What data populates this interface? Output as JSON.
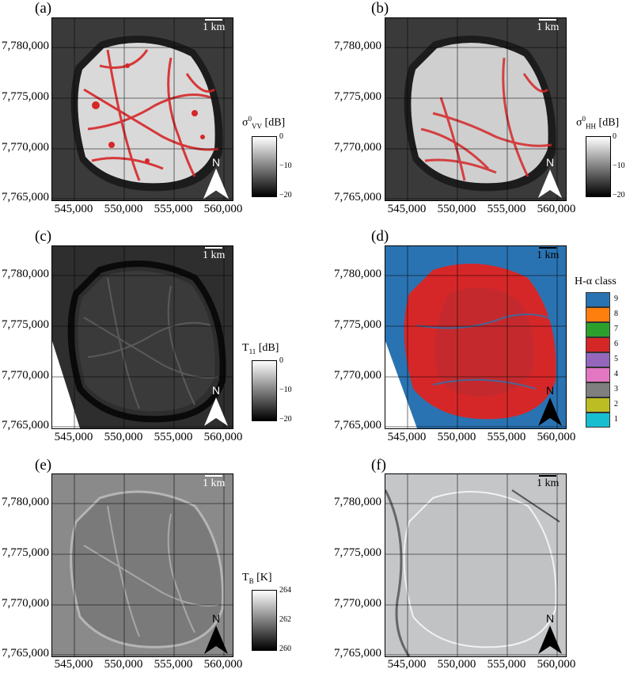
{
  "panels": {
    "a": {
      "label": "(a)",
      "scale": "1 km",
      "cbar_title_main": "σ",
      "cbar_title_sup": "0",
      "cbar_title_sub": "VV",
      "cbar_title_unit": " [dB]",
      "cbar_ticks": [
        "0",
        "−10",
        "−20"
      ],
      "north": "N"
    },
    "b": {
      "label": "(b)",
      "scale": "1 km",
      "cbar_title_main": "σ",
      "cbar_title_sup": "0",
      "cbar_title_sub": "HH",
      "cbar_title_unit": " [dB]",
      "cbar_ticks": [
        "0",
        "−10",
        "−20"
      ],
      "north": "N"
    },
    "c": {
      "label": "(c)",
      "scale": "1 km",
      "cbar_title_main": "T",
      "cbar_title_sub": "11",
      "cbar_title_unit": " [dB]",
      "cbar_ticks": [
        "0",
        "−10",
        "−20"
      ],
      "north": "N"
    },
    "d": {
      "label": "(d)",
      "scale": "1 km",
      "legend_title": "H-α class",
      "north": "N",
      "classes": [
        {
          "num": "9",
          "color": "#2a73b2"
        },
        {
          "num": "8",
          "color": "#ff7f0e"
        },
        {
          "num": "7",
          "color": "#2ca02c"
        },
        {
          "num": "6",
          "color": "#d62728"
        },
        {
          "num": "5",
          "color": "#9467bd"
        },
        {
          "num": "4",
          "color": "#e377c2"
        },
        {
          "num": "3",
          "color": "#7f7f7f"
        },
        {
          "num": "2",
          "color": "#bcbd22"
        },
        {
          "num": "1",
          "color": "#17becf"
        }
      ]
    },
    "e": {
      "label": "(e)",
      "scale": "1 km",
      "cbar_title_main": "T",
      "cbar_title_sub": "B",
      "cbar_title_unit": " [K]",
      "cbar_ticks": [
        "264",
        "262",
        "260"
      ],
      "north": "N"
    },
    "f": {
      "label": "(f)",
      "scale": "1 km",
      "north": "N"
    }
  },
  "y_ticks": [
    "7,780,000",
    "7,775,000",
    "7,770,000",
    "7,765,000"
  ],
  "x_ticks": [
    "545,000",
    "550,000",
    "555,000",
    "560,000"
  ],
  "colors": {
    "overlay_red": "#d62728",
    "class_blue": "#2a73b2"
  }
}
